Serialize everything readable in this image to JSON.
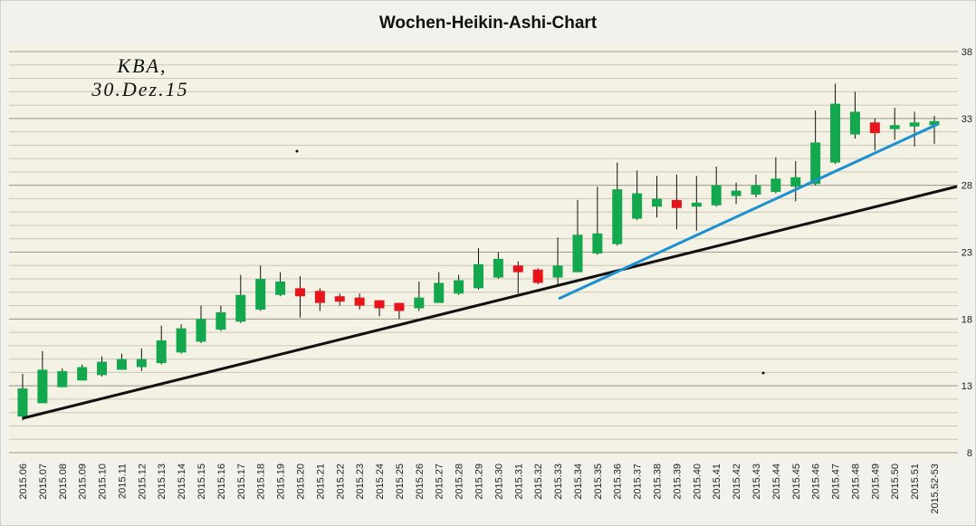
{
  "chart_data": {
    "type": "candlestick",
    "title": "Wochen-Heikin-Ashi-Chart",
    "annotation": [
      "KBA,",
      "30.Dez.15"
    ],
    "categories": [
      "2015.06",
      "2015.07",
      "2015.08",
      "2015.09",
      "2015.10",
      "2015.11",
      "2015.12",
      "2015.13",
      "2015.14",
      "2015.15",
      "2015.16",
      "2015.17",
      "2015.18",
      "2015.19",
      "2015.20",
      "2015.21",
      "2015.22",
      "2015.23",
      "2015.24",
      "2015.25",
      "2015.26",
      "2015.27",
      "2015.28",
      "2015.29",
      "2015.30",
      "2015.31",
      "2015.32",
      "2015.33",
      "2015.34",
      "2015.35",
      "2015.36",
      "2015.37",
      "2015.38",
      "2015.39",
      "2015.40",
      "2015.41",
      "2015.42",
      "2015.43",
      "2015.44",
      "2015.45",
      "2015.46",
      "2015.47",
      "2015.48",
      "2015.49",
      "2015.50",
      "2015.51",
      "2015.52-53"
    ],
    "open": [
      10.7,
      11.7,
      12.9,
      13.4,
      13.8,
      14.2,
      14.4,
      14.7,
      15.5,
      16.3,
      17.2,
      17.8,
      18.7,
      19.8,
      20.3,
      20.1,
      19.7,
      19.6,
      19.4,
      19.2,
      18.8,
      19.2,
      19.9,
      20.3,
      21.1,
      22.0,
      21.7,
      21.1,
      21.5,
      22.9,
      23.6,
      25.5,
      26.4,
      26.9,
      26.4,
      26.5,
      27.2,
      27.3,
      27.5,
      27.9,
      28.1,
      29.7,
      31.8,
      32.7,
      32.2,
      32.4,
      32.5
    ],
    "high": [
      13.9,
      15.6,
      14.3,
      14.6,
      15.2,
      15.4,
      15.8,
      17.5,
      17.6,
      19.0,
      19.0,
      21.3,
      22.0,
      21.5,
      21.2,
      20.3,
      19.9,
      19.9,
      19.4,
      19.2,
      20.8,
      21.5,
      21.3,
      23.3,
      23.0,
      22.3,
      21.8,
      24.1,
      26.9,
      27.9,
      29.7,
      29.1,
      28.7,
      28.8,
      28.7,
      29.4,
      28.2,
      28.8,
      30.1,
      29.8,
      33.6,
      35.6,
      35.0,
      33.0,
      33.8,
      33.5,
      33.2
    ],
    "low": [
      10.4,
      11.7,
      12.9,
      13.4,
      13.7,
      14.2,
      14.1,
      14.6,
      15.4,
      16.2,
      17.1,
      17.7,
      18.6,
      19.7,
      18.1,
      18.6,
      19.0,
      18.7,
      18.2,
      18.0,
      18.6,
      19.2,
      19.8,
      20.2,
      21.0,
      19.9,
      20.6,
      20.6,
      21.5,
      22.8,
      23.5,
      25.4,
      25.6,
      24.7,
      24.6,
      26.4,
      26.6,
      27.1,
      27.4,
      26.8,
      28.0,
      29.6,
      31.5,
      30.6,
      31.4,
      30.9,
      31.1
    ],
    "close": [
      12.8,
      14.2,
      14.1,
      14.4,
      14.8,
      15.0,
      15.0,
      16.4,
      17.3,
      18.0,
      18.5,
      19.8,
      21.0,
      20.8,
      19.7,
      19.2,
      19.3,
      19.0,
      18.8,
      18.6,
      19.6,
      20.7,
      20.9,
      22.1,
      22.5,
      21.5,
      20.7,
      22.0,
      24.3,
      24.4,
      27.7,
      27.4,
      27.0,
      26.3,
      26.7,
      28.0,
      27.6,
      28.0,
      28.5,
      28.6,
      31.2,
      34.1,
      33.5,
      31.9,
      32.5,
      32.7,
      32.8
    ],
    "up_color": "#14a84e",
    "down_color": "#e8141c",
    "ylim": [
      8,
      38
    ],
    "yticks": [
      8,
      13,
      18,
      23,
      28,
      33,
      38
    ],
    "grid": true,
    "minor_grid": true
  }
}
